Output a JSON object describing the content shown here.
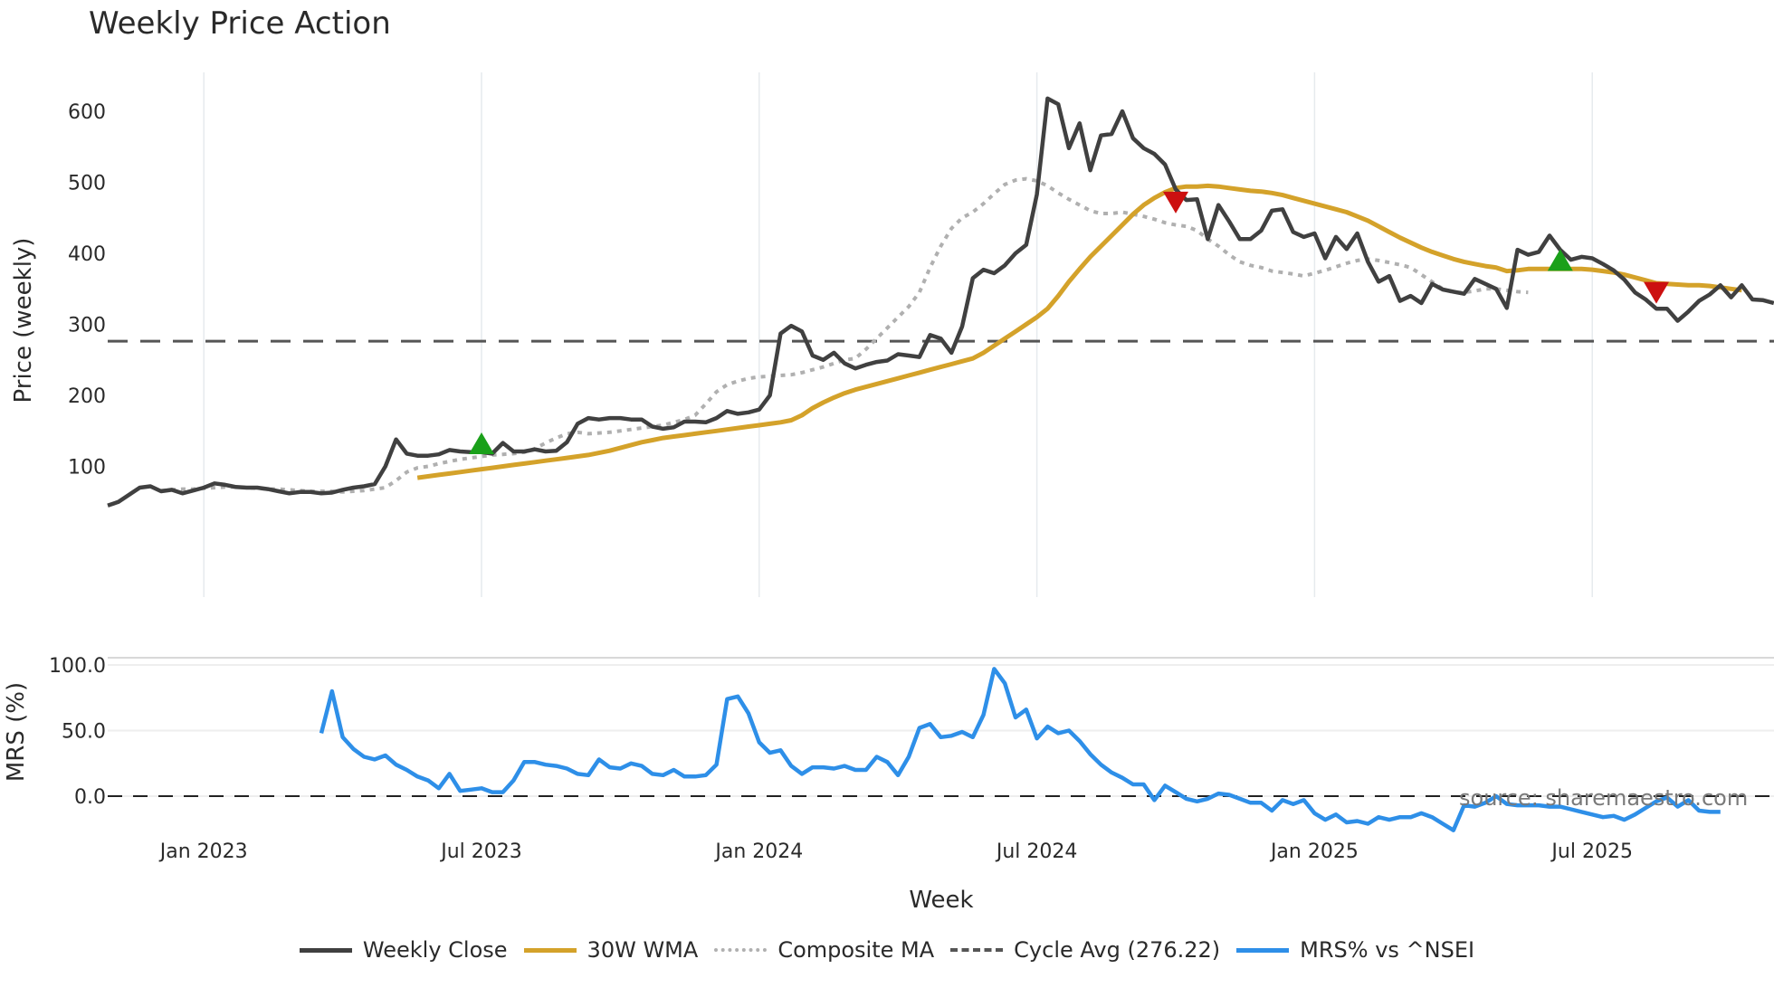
{
  "title": "Weekly Price Action",
  "chart_data": [
    {
      "type": "line",
      "panel": "price",
      "title": "Weekly Price Action",
      "ylabel": "Price (weekly)",
      "ylim": [
        20,
        650
      ],
      "yticks": [
        100,
        200,
        300,
        400,
        500,
        600
      ],
      "grid": "vertical",
      "x_start_week_index": 0,
      "x_ticks": [
        {
          "label": "Jan 2023",
          "week": 9
        },
        {
          "label": "Jul 2023",
          "week": 35
        },
        {
          "label": "Jan 2024",
          "week": 61
        },
        {
          "label": "Jul 2024",
          "week": 87
        },
        {
          "label": "Jan 2025",
          "week": 113
        },
        {
          "label": "Jul 2025",
          "week": 139
        }
      ],
      "series": [
        {
          "name": "Weekly Close",
          "color": "#404040",
          "style": "solid",
          "start": 0,
          "values": [
            45,
            50,
            60,
            70,
            72,
            65,
            67,
            62,
            66,
            70,
            76,
            74,
            71,
            70,
            70,
            68,
            65,
            62,
            64,
            64,
            62,
            63,
            67,
            70,
            72,
            75,
            100,
            138,
            118,
            115,
            115,
            117,
            123,
            121,
            120,
            120,
            118,
            133,
            121,
            121,
            124,
            121,
            122,
            134,
            160,
            168,
            166,
            168,
            168,
            166,
            166,
            156,
            153,
            155,
            163,
            163,
            162,
            168,
            178,
            174,
            176,
            180,
            200,
            287,
            298,
            290,
            256,
            250,
            260,
            245,
            238,
            243,
            247,
            249,
            258,
            256,
            254,
            285,
            280,
            260,
            297,
            365,
            377,
            372,
            383,
            400,
            412,
            483,
            618,
            610,
            548,
            583,
            517,
            566,
            568,
            600,
            562,
            548,
            540,
            525,
            490,
            475,
            476,
            420,
            468,
            445,
            420,
            420,
            432,
            460,
            462,
            430,
            423,
            428,
            393,
            423,
            406,
            428,
            388,
            360,
            368,
            333,
            340,
            330,
            357,
            349,
            346,
            343,
            364,
            357,
            350,
            323,
            405,
            398,
            402,
            425,
            405,
            391,
            395,
            393,
            385,
            376,
            363,
            345,
            335,
            322,
            322,
            305,
            318,
            333,
            342,
            355,
            338,
            355,
            335,
            334,
            330
          ]
        },
        {
          "name": "30W WMA",
          "color": "#d4a22a",
          "style": "solid",
          "start": 29,
          "values": [
            84,
            86,
            88,
            90,
            92,
            94,
            96,
            98,
            100,
            102,
            104,
            106,
            108,
            110,
            112,
            114,
            116,
            119,
            122,
            126,
            130,
            134,
            137,
            140,
            142,
            144,
            146,
            148,
            150,
            152,
            154,
            156,
            158,
            160,
            162,
            165,
            172,
            182,
            190,
            197,
            203,
            208,
            212,
            216,
            220,
            224,
            228,
            232,
            236,
            240,
            244,
            248,
            252,
            260,
            270,
            280,
            290,
            300,
            310,
            322,
            340,
            360,
            378,
            395,
            410,
            425,
            440,
            455,
            468,
            478,
            486,
            492,
            494,
            494,
            495,
            494,
            492,
            490,
            488,
            487,
            485,
            482,
            478,
            474,
            470,
            466,
            462,
            458,
            452,
            446,
            438,
            430,
            422,
            415,
            408,
            402,
            397,
            392,
            388,
            385,
            382,
            380,
            375,
            376,
            378,
            378,
            378,
            378,
            378,
            378,
            377,
            375,
            373,
            370,
            366,
            362,
            358,
            357,
            356,
            355,
            355,
            354,
            352,
            350,
            348
          ]
        },
        {
          "name": "Composite MA",
          "color": "#b0b0b0",
          "style": "dotted",
          "start": 5,
          "values": [
            66,
            67,
            68,
            68,
            69,
            70,
            71,
            71,
            70,
            69,
            68,
            68,
            67,
            66,
            65,
            65,
            65,
            64,
            65,
            66,
            68,
            70,
            80,
            92,
            98,
            100,
            104,
            107,
            110,
            112,
            114,
            116,
            117,
            118,
            120,
            125,
            133,
            140,
            146,
            148,
            146,
            147,
            148,
            150,
            152,
            154,
            156,
            158,
            162,
            166,
            172,
            188,
            205,
            215,
            220,
            224,
            226,
            227,
            228,
            229,
            232,
            236,
            240,
            245,
            250,
            252,
            265,
            280,
            295,
            310,
            325,
            345,
            380,
            410,
            435,
            450,
            458,
            470,
            484,
            497,
            503,
            505,
            502,
            495,
            485,
            476,
            468,
            460,
            456,
            456,
            458,
            455,
            452,
            448,
            443,
            440,
            438,
            432,
            420,
            410,
            398,
            388,
            383,
            380,
            375,
            373,
            371,
            368,
            372,
            376,
            381,
            386,
            390,
            392,
            390,
            387,
            384,
            380,
            370,
            360,
            350,
            345,
            345,
            347,
            350,
            350,
            348,
            346,
            345
          ]
        },
        {
          "name": "Cycle Avg (276.22)",
          "color": "#555555",
          "style": "dashed",
          "constant": 276.22
        }
      ],
      "markers": [
        {
          "type": "buy",
          "shape": "triangle-up",
          "color": "#1aa01a",
          "week": 35,
          "value": 130
        },
        {
          "type": "sell",
          "shape": "triangle-down",
          "color": "#cc1010",
          "week": 100,
          "value": 474
        },
        {
          "type": "buy",
          "shape": "triangle-up",
          "color": "#1aa01a",
          "week": 136,
          "value": 388
        },
        {
          "type": "sell",
          "shape": "triangle-down",
          "color": "#cc1010",
          "week": 145,
          "value": 347
        }
      ]
    },
    {
      "type": "line",
      "panel": "mrs",
      "ylabel": "MRS (%)",
      "xlabel": "Week",
      "ylim": [
        -30,
        105
      ],
      "yticks": [
        "100.0",
        "50.0",
        "0.0"
      ],
      "series": [
        {
          "name": "MRS% vs ^NSEI",
          "color": "#2e8fe8",
          "style": "solid",
          "start": 20,
          "values": [
            48,
            80,
            45,
            36,
            30,
            28,
            31,
            24,
            20,
            15,
            12,
            6,
            17,
            4,
            5,
            6,
            3,
            3,
            12,
            26,
            26,
            24,
            23,
            21,
            17,
            16,
            28,
            22,
            21,
            25,
            23,
            17,
            16,
            20,
            15,
            15,
            16,
            24,
            74,
            76,
            63,
            41,
            33,
            35,
            23,
            17,
            22,
            22,
            21,
            23,
            20,
            20,
            30,
            26,
            16,
            30,
            52,
            55,
            45,
            46,
            49,
            45,
            62,
            97,
            86,
            60,
            66,
            44,
            53,
            48,
            50,
            42,
            32,
            24,
            18,
            14,
            9,
            9,
            -3,
            8,
            3,
            -2,
            -4,
            -2,
            2,
            1,
            -2,
            -5,
            -5,
            -11,
            -3,
            -6,
            -3,
            -13,
            -18,
            -14,
            -20,
            -19,
            -21,
            -16,
            -18,
            -16,
            -16,
            -13,
            -16,
            -21,
            -26,
            -7,
            -8,
            -5,
            0,
            -6,
            -7,
            -7,
            -7,
            -8,
            -8,
            -10,
            -12,
            -14,
            -16,
            -15,
            -18,
            -14,
            -9,
            -4,
            -1,
            -8,
            -3,
            -11,
            -12,
            -12
          ]
        }
      ],
      "reference_line": {
        "value": 0,
        "style": "dashed",
        "color": "#222222"
      }
    }
  ],
  "axes": {
    "price_ylabel": "Price (weekly)",
    "mrs_ylabel": "MRS (%)",
    "xlabel": "Week",
    "price_ticks": [
      "600",
      "500",
      "400",
      "300",
      "200",
      "100"
    ],
    "mrs_ticks": [
      "100.0",
      "50.0",
      "0.0"
    ],
    "x_ticks": [
      "Jan 2023",
      "Jul 2023",
      "Jan 2024",
      "Jul 2024",
      "Jan 2025",
      "Jul 2025"
    ]
  },
  "watermark": "source: sharemaestro.com",
  "legend": [
    {
      "label": "Weekly Close",
      "color": "#404040",
      "style": "solid"
    },
    {
      "label": "30W WMA",
      "color": "#d4a22a",
      "style": "solid"
    },
    {
      "label": "Composite MA",
      "color": "#b0b0b0",
      "style": "dotted"
    },
    {
      "label": "Cycle Avg (276.22)",
      "color": "#555555",
      "style": "dashed"
    },
    {
      "label": "MRS% vs ^NSEI",
      "color": "#2e8fe8",
      "style": "solid"
    }
  ]
}
